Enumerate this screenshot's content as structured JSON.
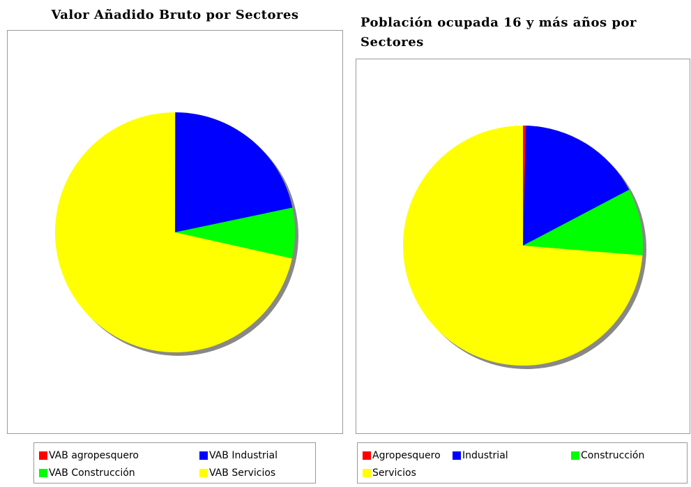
{
  "chart_data": [
    {
      "type": "pie",
      "title": "Valor Añadido Bruto por Sectores",
      "categories": [
        "VAB agropesquero",
        "VAB Industrial",
        "VAB Construcción",
        "VAB Servicios"
      ],
      "values": [
        0.1,
        21.6,
        6.8,
        71.5
      ],
      "colors": [
        "#ff0000",
        "#0000ff",
        "#00ff00",
        "#ffff00"
      ]
    },
    {
      "type": "pie",
      "title": "Población ocupada 16 y más años por Sectores",
      "categories": [
        "Agropesquero",
        "Industrial",
        "Construcción",
        "Servicios"
      ],
      "values": [
        0.4,
        16.9,
        9.0,
        73.7
      ],
      "colors": [
        "#ff0000",
        "#0000ff",
        "#00ff00",
        "#ffff00"
      ]
    }
  ]
}
